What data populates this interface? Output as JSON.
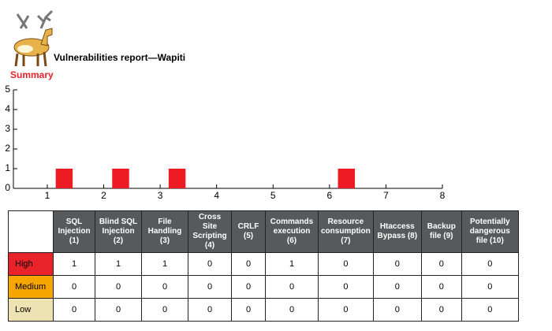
{
  "header": {
    "title": "Vulnerabilities report—Wapiti",
    "section": "Summary"
  },
  "chart_data": {
    "type": "bar",
    "x": [
      1.3,
      2.3,
      3.3,
      6.3
    ],
    "values": [
      1,
      1,
      1,
      1
    ],
    "color": "#ed1c24",
    "xlim": [
      0.4,
      8
    ],
    "xticks": [
      1,
      2,
      3,
      4,
      5,
      6,
      7,
      8
    ],
    "ylim": [
      0,
      5
    ],
    "yticks": [
      0,
      1,
      2,
      3,
      4,
      5
    ]
  },
  "table": {
    "columns": [
      "SQL Injection (1)",
      "Blind SQL Injection (2)",
      "File Handling (3)",
      "Cross Site Scripting (4)",
      "CRLF (5)",
      "Commands execution (6)",
      "Resource consumption (7)",
      "Htaccess Bypass (8)",
      "Backup file (9)",
      "Potentially dangerous file (10)"
    ],
    "rows": [
      {
        "label": "High",
        "values": [
          1,
          1,
          1,
          0,
          0,
          1,
          0,
          0,
          0,
          0
        ]
      },
      {
        "label": "Medium",
        "values": [
          0,
          0,
          0,
          0,
          0,
          0,
          0,
          0,
          0,
          0
        ]
      },
      {
        "label": "Low",
        "values": [
          0,
          0,
          0,
          0,
          0,
          0,
          0,
          0,
          0,
          0
        ]
      }
    ]
  }
}
